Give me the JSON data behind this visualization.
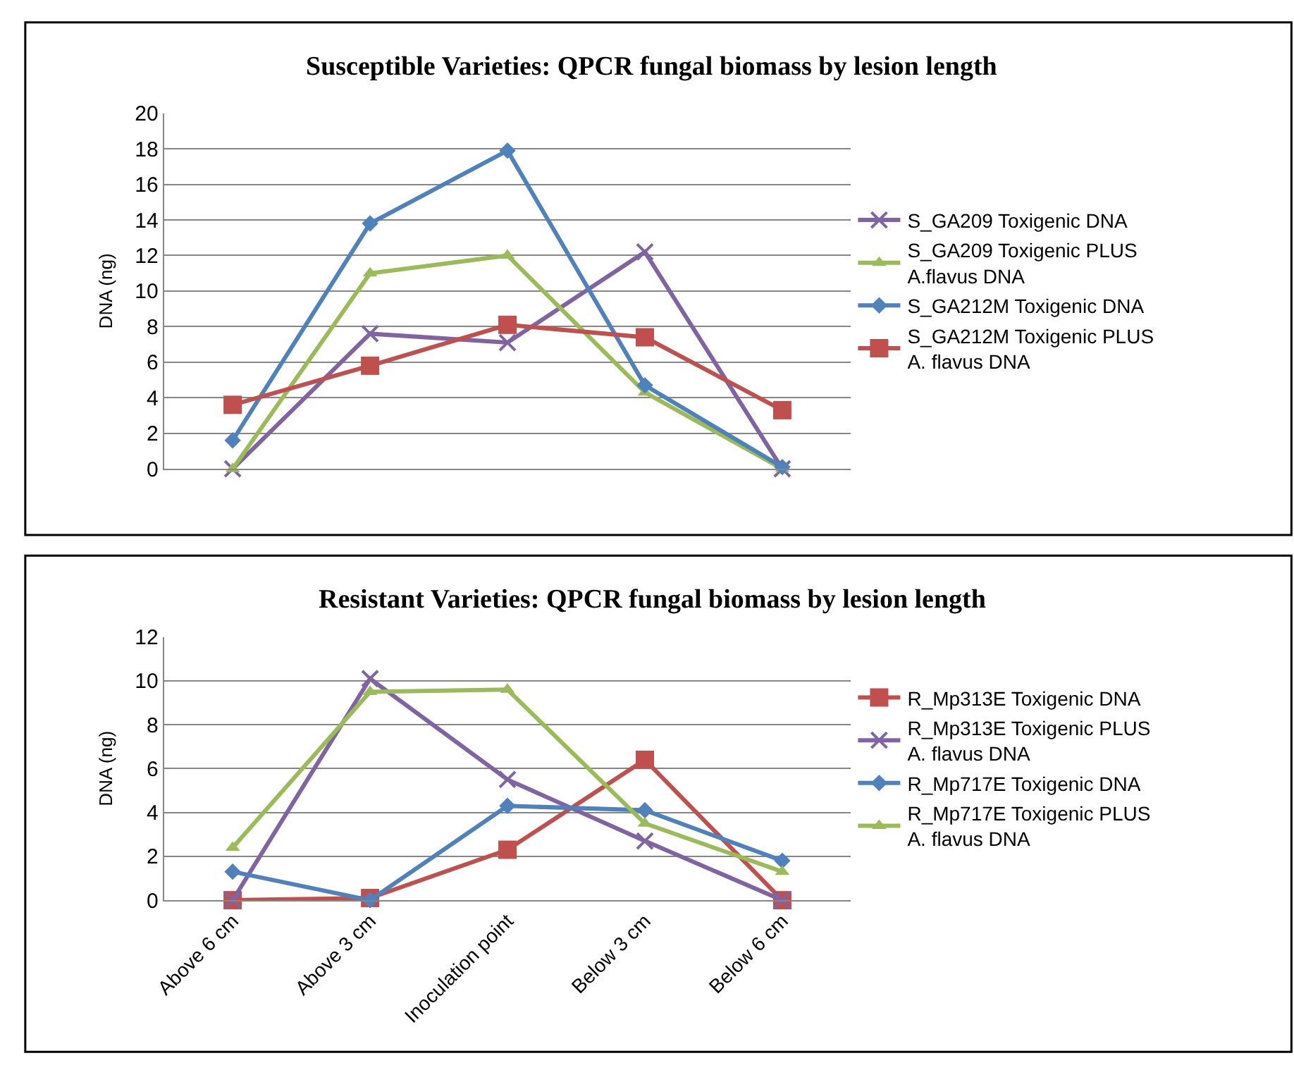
{
  "chart_data": [
    {
      "type": "line",
      "title": "Susceptible Varieties: QPCR fungal biomass by lesion length",
      "ylabel": "DNA (ng)",
      "categories": [
        null,
        null,
        null,
        null,
        null
      ],
      "ylim": [
        0,
        20
      ],
      "yticks": [
        0,
        2,
        4,
        6,
        8,
        10,
        12,
        14,
        16,
        18,
        20
      ],
      "grid": "y",
      "legend": "right",
      "series": [
        {
          "name": "S_GA209 Toxigenic DNA",
          "color": "#8064a2",
          "marker": "cross",
          "values": [
            0,
            7.6,
            7.1,
            12.2,
            0
          ]
        },
        {
          "name": "S_GA209 Toxigenic PLUS A.flavus DNA",
          "color": "#9bbb59",
          "marker": "triangle",
          "values": [
            0,
            11.0,
            12.0,
            4.3,
            0
          ]
        },
        {
          "name": "S_GA212M Toxigenic DNA",
          "color": "#4f81bd",
          "marker": "diamond",
          "values": [
            1.6,
            13.8,
            17.9,
            4.7,
            0.1
          ]
        },
        {
          "name": "S_GA212M Toxigenic PLUS A. flavus DNA",
          "color": "#c0504d",
          "marker": "square",
          "values": [
            3.6,
            5.8,
            8.1,
            7.4,
            3.3
          ]
        }
      ]
    },
    {
      "type": "line",
      "title": "Resistant Varieties: QPCR fungal biomass by lesion length",
      "ylabel": "DNA (ng)",
      "categories": [
        "Above 6 cm",
        "Above 3 cm",
        "Inoculation point",
        "Below 3 cm",
        "Below 6 cm"
      ],
      "ylim": [
        0,
        12
      ],
      "yticks": [
        0,
        2,
        4,
        6,
        8,
        10,
        12
      ],
      "grid": "y",
      "legend": "right",
      "series": [
        {
          "name": "R_Mp313E Toxigenic DNA",
          "color": "#c0504d",
          "marker": "square",
          "values": [
            0,
            0.1,
            2.3,
            6.4,
            0
          ]
        },
        {
          "name": "R_Mp313E Toxigenic PLUS A. flavus DNA",
          "color": "#8064a2",
          "marker": "cross",
          "values": [
            0,
            10.1,
            5.5,
            2.7,
            0
          ]
        },
        {
          "name": "R_Mp717E Toxigenic DNA",
          "color": "#4f81bd",
          "marker": "diamond",
          "values": [
            1.3,
            0,
            4.3,
            4.1,
            1.8
          ]
        },
        {
          "name": "R_Mp717E Toxigenic PLUS A. flavus DNA",
          "color": "#9bbb59",
          "marker": "triangle",
          "values": [
            2.4,
            9.5,
            9.6,
            3.5,
            1.3
          ]
        }
      ]
    }
  ]
}
